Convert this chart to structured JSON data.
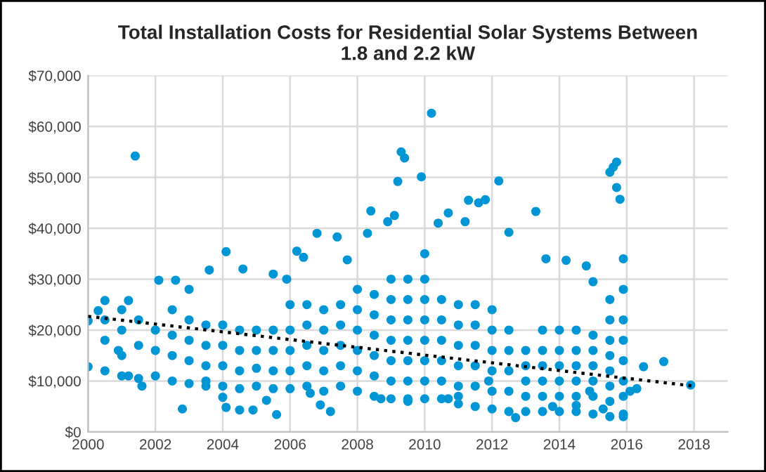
{
  "chart_data": {
    "type": "scatter",
    "title": "Total Installation Costs for Residential Solar Systems Between\n1.8 and 2.2 kW",
    "xlim": [
      2000,
      2019
    ],
    "xticks": [
      2000,
      2002,
      2004,
      2006,
      2008,
      2010,
      2012,
      2014,
      2016,
      2018
    ],
    "ylim": [
      0,
      70000
    ],
    "yticks": [
      {
        "value": 0,
        "label": "$0"
      },
      {
        "value": 10000,
        "label": "$10,000"
      },
      {
        "value": 20000,
        "label": "$20,000"
      },
      {
        "value": 30000,
        "label": "$30,000"
      },
      {
        "value": 40000,
        "label": "$40,000"
      },
      {
        "value": 50000,
        "label": "$50,000"
      },
      {
        "value": 60000,
        "label": "$60,000"
      },
      {
        "value": 70000,
        "label": "$70,000"
      }
    ],
    "grid": true,
    "marker": "circle",
    "series": [
      {
        "color": "#0096d6",
        "x": [
          2000.0,
          2000.0,
          2000.3,
          2000.5,
          2000.9,
          2001.2,
          2001.4,
          2001.6,
          2001.2,
          2002.1,
          2002.6,
          2002.8,
          2003.0,
          2003.5,
          2003.6,
          2004.0,
          2004.1,
          2004.1,
          2004.5,
          2004.6,
          2004.9,
          2005.3,
          2005.6,
          2005.5,
          2005.9,
          2006.2,
          2006.4,
          2006.6,
          2006.8,
          2006.9,
          2007.2,
          2007.4,
          2007.7,
          2008.3,
          2008.4,
          2008.7,
          2008.9,
          2009.1,
          2009.2,
          2009.3,
          2009.4,
          2009.5,
          2009.9,
          2010.2,
          2010.4,
          2010.7,
          2010.7,
          2011.0,
          2011.2,
          2011.3,
          2011.6,
          2011.8,
          2011.9,
          2012.2,
          2012.5,
          2012.7,
          2013.3,
          2013.6,
          2013.8,
          2014.2,
          2014.5,
          2014.8,
          2014.9,
          2015.0,
          2015.3,
          2015.5,
          2015.6,
          2015.7,
          2015.8,
          2015.7,
          2015.9,
          2016.1,
          2016.3,
          2016.5,
          2017.1,
          2017.9,
          2000.5,
          2000.5,
          2000.5,
          2001,
          2001,
          2001,
          2001,
          2001.5,
          2001.5,
          2001.5,
          2002,
          2002,
          2002,
          2002.5,
          2002.5,
          2002.5,
          2002.5,
          2003,
          2003,
          2003,
          2003,
          2003.5,
          2003.5,
          2003.5,
          2003.5,
          2004,
          2004,
          2004,
          2004,
          2004.5,
          2004.5,
          2004.5,
          2004.5,
          2005,
          2005,
          2005,
          2005,
          2005.5,
          2005.5,
          2005.5,
          2005.5,
          2006,
          2006,
          2006,
          2006,
          2006,
          2006.5,
          2006.5,
          2006.5,
          2006.5,
          2006.5,
          2007,
          2007,
          2007,
          2007,
          2007,
          2007.5,
          2007.5,
          2007.5,
          2007.5,
          2007.5,
          2008,
          2008,
          2008,
          2008,
          2008,
          2008,
          2008.5,
          2008.5,
          2008.5,
          2008.5,
          2008.5,
          2008.5,
          2009,
          2009,
          2009,
          2009,
          2009,
          2009,
          2009,
          2009.5,
          2009.5,
          2009.5,
          2009.5,
          2009.5,
          2009.5,
          2009.5,
          2010,
          2010,
          2010,
          2010,
          2010,
          2010,
          2010,
          2010,
          2010.5,
          2010.5,
          2010.5,
          2010.5,
          2010.5,
          2010.5,
          2011,
          2011,
          2011,
          2011,
          2011,
          2011,
          2011.5,
          2011.5,
          2011.5,
          2011.5,
          2011.5,
          2011.5,
          2012,
          2012,
          2012,
          2012,
          2012,
          2012,
          2012.5,
          2012.5,
          2012.5,
          2012.5,
          2012.5,
          2013,
          2013,
          2013,
          2013,
          2013,
          2013.5,
          2013.5,
          2013.5,
          2013.5,
          2013.5,
          2013.5,
          2014,
          2014,
          2014,
          2014,
          2014,
          2014,
          2014.5,
          2014.5,
          2014.5,
          2014.5,
          2014.5,
          2014.5,
          2015,
          2015,
          2015,
          2015,
          2015,
          2015,
          2015.5,
          2015.5,
          2015.5,
          2015.5,
          2015.5,
          2015.5,
          2015.5,
          2015.5,
          2015.9,
          2015.9,
          2015.9,
          2015.9,
          2015.9,
          2015.9,
          2015.9,
          2015.9
        ],
        "values": [
          21800,
          12800,
          23800,
          25800,
          16000,
          25800,
          54200,
          9000,
          11000,
          29800,
          29800,
          4500,
          28000,
          10000,
          31800,
          6800,
          35400,
          4800,
          4300,
          32000,
          4300,
          6200,
          3400,
          31000,
          30000,
          35500,
          34300,
          7600,
          39000,
          5300,
          4000,
          38300,
          33800,
          39000,
          43400,
          6500,
          41300,
          42500,
          49200,
          55000,
          53800,
          6000,
          50100,
          62600,
          41000,
          6500,
          43000,
          7000,
          41300,
          45500,
          45000,
          45600,
          10000,
          49300,
          39200,
          2800,
          43300,
          34000,
          5000,
          33700,
          5200,
          32600,
          8000,
          29500,
          4500,
          51000,
          52000,
          53000,
          45700,
          48000,
          3000,
          8000,
          8500,
          12800,
          13800,
          9200,
          12000,
          18000,
          22000,
          11000,
          15000,
          20000,
          24000,
          10500,
          17000,
          22000,
          11000,
          16000,
          20000,
          10000,
          15000,
          19000,
          24000,
          9500,
          14000,
          18000,
          22000,
          9000,
          13000,
          17000,
          21000,
          9000,
          13000,
          17000,
          21000,
          8500,
          12000,
          16000,
          20000,
          9000,
          12500,
          16000,
          20000,
          8500,
          12000,
          16000,
          20000,
          8500,
          12000,
          16000,
          20000,
          25000,
          9000,
          13000,
          17000,
          21000,
          25000,
          8000,
          12000,
          16000,
          20000,
          24000,
          9000,
          13000,
          17000,
          21000,
          25000,
          8000,
          12000,
          16000,
          20000,
          24000,
          28000,
          7000,
          11000,
          15000,
          19000,
          23000,
          27000,
          6500,
          10000,
          14000,
          18000,
          22000,
          26000,
          30000,
          6500,
          10000,
          14000,
          18000,
          22000,
          26000,
          30000,
          6500,
          10000,
          14000,
          18000,
          22000,
          26000,
          30000,
          35000,
          6500,
          10000,
          14000,
          18000,
          22000,
          26000,
          5500,
          9000,
          13000,
          17000,
          21000,
          25000,
          5000,
          9000,
          13000,
          17000,
          21000,
          25000,
          4500,
          8000,
          12000,
          16000,
          20000,
          24000,
          4000,
          8000,
          12000,
          16000,
          20000,
          4000,
          7000,
          10000,
          13000,
          16000,
          4000,
          7000,
          10000,
          13000,
          16000,
          20000,
          4000,
          7000,
          10000,
          13000,
          16000,
          20000,
          4000,
          7000,
          10000,
          13000,
          16000,
          20000,
          3500,
          7000,
          10000,
          13000,
          16000,
          19000,
          3000,
          6000,
          9000,
          12000,
          15000,
          18000,
          22000,
          26000,
          3500,
          7000,
          10000,
          14000,
          18000,
          22000,
          28000,
          34000
        ]
      },
      {
        "type": "line",
        "color": "#000000",
        "line_style": "dotted",
        "marker": "none",
        "x": [
          2000,
          2018
        ],
        "values": [
          22700,
          9000
        ]
      }
    ]
  }
}
